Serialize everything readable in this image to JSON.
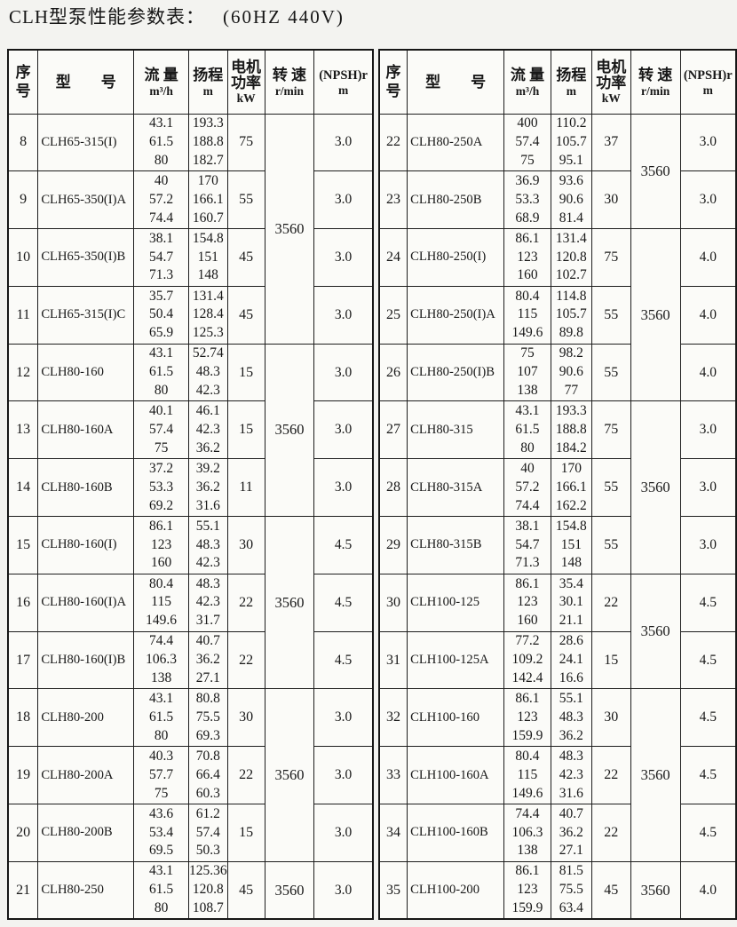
{
  "page": {
    "title": "CLH型泵性能参数表：",
    "title_suffix": "(60HZ 440V)"
  },
  "column_headers": [
    {
      "key": "seq",
      "main": [
        "序",
        "号"
      ],
      "unit": ""
    },
    {
      "key": "model",
      "main": [
        "型　　号"
      ],
      "unit": ""
    },
    {
      "key": "flow",
      "main": [
        "流 量"
      ],
      "unit": "m³/h"
    },
    {
      "key": "head",
      "main": [
        "扬程"
      ],
      "unit": "m"
    },
    {
      "key": "power",
      "main": [
        "电机",
        "功率"
      ],
      "unit": "kW"
    },
    {
      "key": "speed",
      "main": [
        "转 速"
      ],
      "unit": "r/min"
    },
    {
      "key": "npsh",
      "main": [
        "(NPSH)r"
      ],
      "unit": "m"
    }
  ],
  "tables": [
    {
      "side": "left",
      "rows": [
        {
          "seq": "8",
          "model": "CLH65-315(I)",
          "flow": [
            "43.1",
            "61.5",
            "80"
          ],
          "head": [
            "193.3",
            "188.8",
            "182.7"
          ],
          "power": "75",
          "speed": {
            "value": "3560",
            "rowspan": 4
          },
          "npsh": "3.0"
        },
        {
          "seq": "9",
          "model": "CLH65-350(I)A",
          "flow": [
            "40",
            "57.2",
            "74.4"
          ],
          "head": [
            "170",
            "166.1",
            "160.7"
          ],
          "power": "55",
          "npsh": "3.0"
        },
        {
          "seq": "10",
          "model": "CLH65-350(I)B",
          "flow": [
            "38.1",
            "54.7",
            "71.3"
          ],
          "head": [
            "154.8",
            "151",
            "148"
          ],
          "power": "45",
          "npsh": "3.0"
        },
        {
          "seq": "11",
          "model": "CLH65-315(I)C",
          "flow": [
            "35.7",
            "50.4",
            "65.9"
          ],
          "head": [
            "131.4",
            "128.4",
            "125.3"
          ],
          "power": "45",
          "npsh": "3.0"
        },
        {
          "seq": "12",
          "model": "CLH80-160",
          "flow": [
            "43.1",
            "61.5",
            "80"
          ],
          "head": [
            "52.74",
            "48.3",
            "42.3"
          ],
          "power": "15",
          "speed": {
            "value": "3560",
            "rowspan": 3
          },
          "npsh": "3.0"
        },
        {
          "seq": "13",
          "model": "CLH80-160A",
          "flow": [
            "40.1",
            "57.4",
            "75"
          ],
          "head": [
            "46.1",
            "42.3",
            "36.2"
          ],
          "power": "15",
          "npsh": "3.0"
        },
        {
          "seq": "14",
          "model": "CLH80-160B",
          "flow": [
            "37.2",
            "53.3",
            "69.2"
          ],
          "head": [
            "39.2",
            "36.2",
            "31.6"
          ],
          "power": "11",
          "npsh": "3.0"
        },
        {
          "seq": "15",
          "model": "CLH80-160(I)",
          "flow": [
            "86.1",
            "123",
            "160"
          ],
          "head": [
            "55.1",
            "48.3",
            "42.3"
          ],
          "power": "30",
          "speed": {
            "value": "3560",
            "rowspan": 3
          },
          "npsh": "4.5"
        },
        {
          "seq": "16",
          "model": "CLH80-160(I)A",
          "flow": [
            "80.4",
            "115",
            "149.6"
          ],
          "head": [
            "48.3",
            "42.3",
            "31.7"
          ],
          "power": "22",
          "npsh": "4.5"
        },
        {
          "seq": "17",
          "model": "CLH80-160(I)B",
          "flow": [
            "74.4",
            "106.3",
            "138"
          ],
          "head": [
            "40.7",
            "36.2",
            "27.1"
          ],
          "power": "22",
          "npsh": "4.5"
        },
        {
          "seq": "18",
          "model": "CLH80-200",
          "flow": [
            "43.1",
            "61.5",
            "80"
          ],
          "head": [
            "80.8",
            "75.5",
            "69.3"
          ],
          "power": "30",
          "speed": {
            "value": "3560",
            "rowspan": 3
          },
          "npsh": "3.0"
        },
        {
          "seq": "19",
          "model": "CLH80-200A",
          "flow": [
            "40.3",
            "57.7",
            "75"
          ],
          "head": [
            "70.8",
            "66.4",
            "60.3"
          ],
          "power": "22",
          "npsh": "3.0"
        },
        {
          "seq": "20",
          "model": "CLH80-200B",
          "flow": [
            "43.6",
            "53.4",
            "69.5"
          ],
          "head": [
            "61.2",
            "57.4",
            "50.3"
          ],
          "power": "15",
          "npsh": "3.0"
        },
        {
          "seq": "21",
          "model": "CLH80-250",
          "flow": [
            "43.1",
            "61.5",
            "80"
          ],
          "head": [
            "125.36",
            "120.8",
            "108.7"
          ],
          "power": "45",
          "speed": {
            "value": "3560",
            "rowspan": 1
          },
          "npsh": "3.0"
        }
      ]
    },
    {
      "side": "right",
      "rows": [
        {
          "seq": "22",
          "model": "CLH80-250A",
          "flow": [
            "400",
            "57.4",
            "75"
          ],
          "head": [
            "110.2",
            "105.7",
            "95.1"
          ],
          "power": "37",
          "speed": {
            "value": "3560",
            "rowspan": 2
          },
          "npsh": "3.0"
        },
        {
          "seq": "23",
          "model": "CLH80-250B",
          "flow": [
            "36.9",
            "53.3",
            "68.9"
          ],
          "head": [
            "93.6",
            "90.6",
            "81.4"
          ],
          "power": "30",
          "npsh": "3.0"
        },
        {
          "seq": "24",
          "model": "CLH80-250(I)",
          "flow": [
            "86.1",
            "123",
            "160"
          ],
          "head": [
            "131.4",
            "120.8",
            "102.7"
          ],
          "power": "75",
          "speed": {
            "value": "3560",
            "rowspan": 3
          },
          "npsh": "4.0"
        },
        {
          "seq": "25",
          "model": "CLH80-250(I)A",
          "flow": [
            "80.4",
            "115",
            "149.6"
          ],
          "head": [
            "114.8",
            "105.7",
            "89.8"
          ],
          "power": "55",
          "npsh": "4.0"
        },
        {
          "seq": "26",
          "model": "CLH80-250(I)B",
          "flow": [
            "75",
            "107",
            "138"
          ],
          "head": [
            "98.2",
            "90.6",
            "77"
          ],
          "power": "55",
          "npsh": "4.0"
        },
        {
          "seq": "27",
          "model": "CLH80-315",
          "flow": [
            "43.1",
            "61.5",
            "80"
          ],
          "head": [
            "193.3",
            "188.8",
            "184.2"
          ],
          "power": "75",
          "speed": {
            "value": "3560",
            "rowspan": 3
          },
          "npsh": "3.0"
        },
        {
          "seq": "28",
          "model": "CLH80-315A",
          "flow": [
            "40",
            "57.2",
            "74.4"
          ],
          "head": [
            "170",
            "166.1",
            "162.2"
          ],
          "power": "55",
          "npsh": "3.0"
        },
        {
          "seq": "29",
          "model": "CLH80-315B",
          "flow": [
            "38.1",
            "54.7",
            "71.3"
          ],
          "head": [
            "154.8",
            "151",
            "148"
          ],
          "power": "55",
          "npsh": "3.0"
        },
        {
          "seq": "30",
          "model": "CLH100-125",
          "flow": [
            "86.1",
            "123",
            "160"
          ],
          "head": [
            "35.4",
            "30.1",
            "21.1"
          ],
          "power": "22",
          "speed": {
            "value": "3560",
            "rowspan": 2
          },
          "npsh": "4.5"
        },
        {
          "seq": "31",
          "model": "CLH100-125A",
          "flow": [
            "77.2",
            "109.2",
            "142.4"
          ],
          "head": [
            "28.6",
            "24.1",
            "16.6"
          ],
          "power": "15",
          "npsh": "4.5"
        },
        {
          "seq": "32",
          "model": "CLH100-160",
          "flow": [
            "86.1",
            "123",
            "159.9"
          ],
          "head": [
            "55.1",
            "48.3",
            "36.2"
          ],
          "power": "30",
          "speed": {
            "value": "3560",
            "rowspan": 3
          },
          "npsh": "4.5"
        },
        {
          "seq": "33",
          "model": "CLH100-160A",
          "flow": [
            "80.4",
            "115",
            "149.6"
          ],
          "head": [
            "48.3",
            "42.3",
            "31.6"
          ],
          "power": "22",
          "npsh": "4.5"
        },
        {
          "seq": "34",
          "model": "CLH100-160B",
          "flow": [
            "74.4",
            "106.3",
            "138"
          ],
          "head": [
            "40.7",
            "36.2",
            "27.1"
          ],
          "power": "22",
          "npsh": "4.5"
        },
        {
          "seq": "35",
          "model": "CLH100-200",
          "flow": [
            "86.1",
            "123",
            "159.9"
          ],
          "head": [
            "81.5",
            "75.5",
            "63.4"
          ],
          "power": "45",
          "speed": {
            "value": "3560",
            "rowspan": 1
          },
          "npsh": "4.0"
        }
      ]
    }
  ]
}
